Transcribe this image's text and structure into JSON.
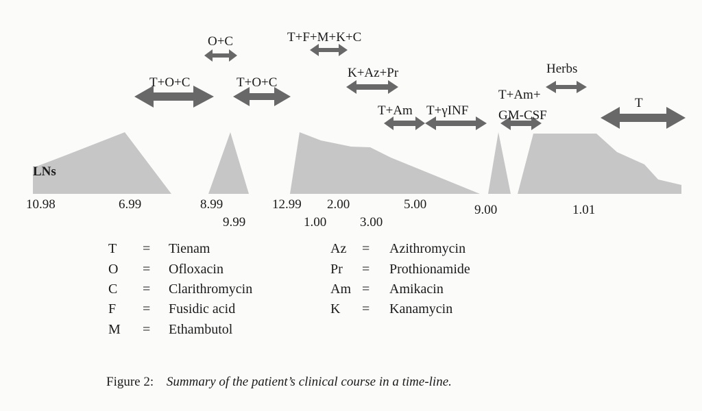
{
  "figure": {
    "axis_label": "LNs",
    "ticks": [
      "10.98",
      "6.99",
      "8.99",
      "9.99",
      "12.99",
      "1.00",
      "2.00",
      "3.00",
      "5.00",
      "9.00",
      "1.01"
    ],
    "regimens": [
      "T+O+C",
      "O+C",
      "T+O+C",
      "T+F+M+K+C",
      "K+Az+Pr",
      "T+Am",
      "T+γINF",
      "T+Am+",
      "GM-CSF",
      "Herbs",
      "T"
    ],
    "colors": {
      "area": "#c6c6c6",
      "arrow": "#686868"
    }
  },
  "legend": [
    {
      "abbr": "T",
      "eq": "=",
      "name": "Tienam"
    },
    {
      "abbr": "O",
      "eq": "=",
      "name": "Ofloxacin"
    },
    {
      "abbr": "C",
      "eq": "=",
      "name": "Clarithromycin"
    },
    {
      "abbr": "F",
      "eq": "=",
      "name": "Fusidic acid"
    },
    {
      "abbr": "M",
      "eq": "=",
      "name": "Ethambutol"
    },
    {
      "abbr": "Az",
      "eq": "=",
      "name": "Azithromycin"
    },
    {
      "abbr": "Pr",
      "eq": "=",
      "name": "Prothionamide"
    },
    {
      "abbr": "Am",
      "eq": "=",
      "name": "Amikacin"
    },
    {
      "abbr": "K",
      "eq": "=",
      "name": "Kanamycin"
    }
  ],
  "caption": {
    "label": "Figure 2:",
    "text": "Summary of the patient’s clinical course in a time-line."
  }
}
